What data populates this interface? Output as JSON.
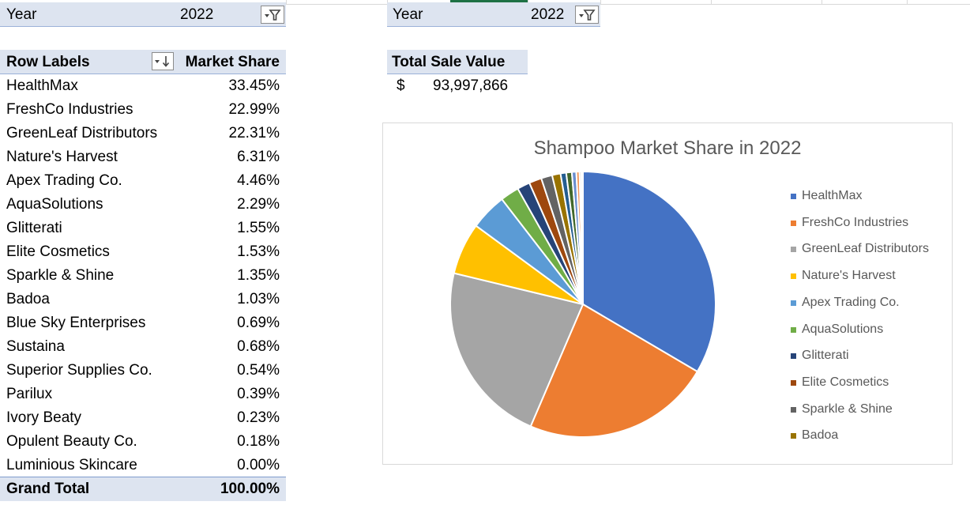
{
  "left_filter": {
    "label": "Year",
    "value": "2022"
  },
  "right_filter": {
    "label": "Year",
    "value": "2022"
  },
  "pivot": {
    "col_row_labels": "Row Labels",
    "col_market_share": "Market Share",
    "rows": [
      {
        "label": "HealthMax",
        "value": "33.45%"
      },
      {
        "label": "FreshCo Industries",
        "value": "22.99%"
      },
      {
        "label": "GreenLeaf Distributors",
        "value": "22.31%"
      },
      {
        "label": "Nature's Harvest",
        "value": "6.31%"
      },
      {
        "label": "Apex Trading Co.",
        "value": "4.46%"
      },
      {
        "label": "AquaSolutions",
        "value": "2.29%"
      },
      {
        "label": "Glitterati",
        "value": "1.55%"
      },
      {
        "label": "Elite Cosmetics",
        "value": "1.53%"
      },
      {
        "label": "Sparkle & Shine",
        "value": "1.35%"
      },
      {
        "label": "Badoa",
        "value": "1.03%"
      },
      {
        "label": "Blue Sky Enterprises",
        "value": "0.69%"
      },
      {
        "label": "Sustaina",
        "value": "0.68%"
      },
      {
        "label": "Superior Supplies Co.",
        "value": "0.54%"
      },
      {
        "label": "Parilux",
        "value": "0.39%"
      },
      {
        "label": "Ivory Beaty",
        "value": "0.23%"
      },
      {
        "label": "Opulent Beauty Co.",
        "value": "0.18%"
      },
      {
        "label": "Luminious Skincare",
        "value": "0.00%"
      }
    ],
    "grand_total_label": "Grand Total",
    "grand_total_value": "100.00%"
  },
  "total_sale": {
    "header": "Total Sale Value",
    "currency": "$",
    "value": "93,997,866"
  },
  "icons": {
    "filter": "filter-funnel-icon",
    "sort": "sort-descending-icon"
  },
  "chart_data": {
    "type": "pie",
    "title": "Shampoo Market Share in 2022",
    "legend_position": "right",
    "categories": [
      "HealthMax",
      "FreshCo Industries",
      "GreenLeaf Distributors",
      "Nature's Harvest",
      "Apex Trading Co.",
      "AquaSolutions",
      "Glitterati",
      "Elite Cosmetics",
      "Sparkle & Shine",
      "Badoa",
      "Blue Sky Enterprises",
      "Sustaina",
      "Superior Supplies Co.",
      "Parilux",
      "Ivory Beaty",
      "Opulent Beauty Co.",
      "Luminious Skincare"
    ],
    "values": [
      33.45,
      22.99,
      22.31,
      6.31,
      4.46,
      2.29,
      1.55,
      1.53,
      1.35,
      1.03,
      0.69,
      0.68,
      0.54,
      0.39,
      0.23,
      0.18,
      0.0
    ],
    "legend_entries": [
      "HealthMax",
      "FreshCo Industries",
      "GreenLeaf Distributors",
      "Nature's Harvest",
      "Apex Trading Co.",
      "AquaSolutions",
      "Glitterati",
      "Elite Cosmetics",
      "Sparkle & Shine",
      "Badoa"
    ],
    "colors": [
      "#4472c4",
      "#ed7d31",
      "#a5a5a5",
      "#ffc000",
      "#5b9bd5",
      "#70ad47",
      "#264478",
      "#9e480e",
      "#636363",
      "#997300",
      "#255e91",
      "#43682b",
      "#698ed0",
      "#f1975a",
      "#b7b7b7",
      "#ffcd33",
      "#7cafdd"
    ]
  }
}
